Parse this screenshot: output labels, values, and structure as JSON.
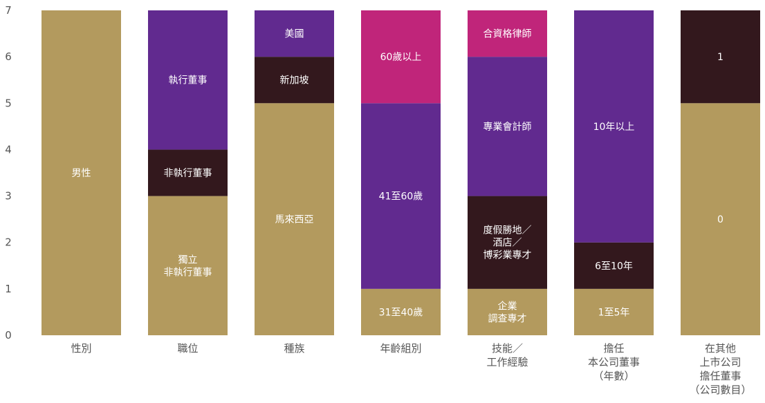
{
  "chart_data": {
    "type": "bar",
    "stacked": true,
    "title": "",
    "xlabel": "",
    "ylabel": "",
    "ylim": [
      0,
      7
    ],
    "yticks": [
      "0",
      "1",
      "2",
      "3",
      "4",
      "5",
      "6",
      "7"
    ],
    "grid": false,
    "legend": "none",
    "colors": {
      "gold": "#b39a5e",
      "dark": "#33181d",
      "purple": "#612a8f",
      "magenta": "#c0257a"
    },
    "categories": [
      {
        "label": [
          "性別"
        ],
        "segments": [
          {
            "label": [
              "男性"
            ],
            "value": 7,
            "color": "gold"
          }
        ]
      },
      {
        "label": [
          "職位"
        ],
        "segments": [
          {
            "label": [
              "獨立",
              "非執行董事"
            ],
            "value": 3,
            "color": "gold"
          },
          {
            "label": [
              "非執行董事"
            ],
            "value": 1,
            "color": "dark"
          },
          {
            "label": [
              "執行董事"
            ],
            "value": 3,
            "color": "purple"
          }
        ]
      },
      {
        "label": [
          "種族"
        ],
        "segments": [
          {
            "label": [
              "馬來西亞"
            ],
            "value": 5,
            "color": "gold"
          },
          {
            "label": [
              "新加坡"
            ],
            "value": 1,
            "color": "dark"
          },
          {
            "label": [
              "美國"
            ],
            "value": 1,
            "color": "purple"
          }
        ]
      },
      {
        "label": [
          "年齡組別"
        ],
        "segments": [
          {
            "label": [
              "31至40歲"
            ],
            "value": 1,
            "color": "gold"
          },
          {
            "label": [
              "41至60歲"
            ],
            "value": 4,
            "color": "purple"
          },
          {
            "label": [
              "60歲以上"
            ],
            "value": 2,
            "color": "magenta"
          }
        ]
      },
      {
        "label": [
          "技能／",
          "工作經驗"
        ],
        "segments": [
          {
            "label": [
              "企業",
              "調查專才"
            ],
            "value": 1,
            "color": "gold"
          },
          {
            "label": [
              "度假勝地／",
              "酒店／",
              "博彩業專才"
            ],
            "value": 2,
            "color": "dark"
          },
          {
            "label": [
              "專業會計師"
            ],
            "value": 3,
            "color": "purple"
          },
          {
            "label": [
              "合資格律師"
            ],
            "value": 1,
            "color": "magenta"
          }
        ]
      },
      {
        "label": [
          "擔任",
          "本公司董事",
          "（年數）"
        ],
        "segments": [
          {
            "label": [
              "1至5年"
            ],
            "value": 1,
            "color": "gold"
          },
          {
            "label": [
              "6至10年"
            ],
            "value": 1,
            "color": "dark"
          },
          {
            "label": [
              "10年以上"
            ],
            "value": 5,
            "color": "purple"
          }
        ]
      },
      {
        "label": [
          "在其他",
          "上市公司",
          "擔任董事",
          "（公司數目）"
        ],
        "segments": [
          {
            "label": [
              "0"
            ],
            "value": 5,
            "color": "gold"
          },
          {
            "label": [
              "1"
            ],
            "value": 2,
            "color": "dark"
          }
        ]
      }
    ]
  }
}
